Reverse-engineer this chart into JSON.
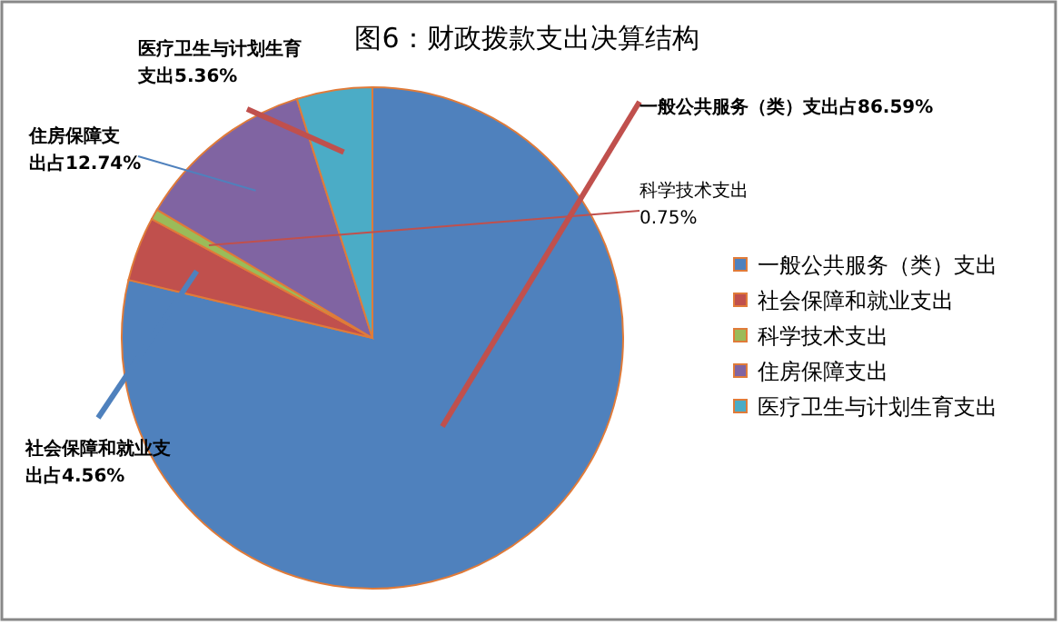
{
  "chart_data": {
    "type": "pie",
    "title": "图6：财政拨款支出决算结构",
    "categories": [
      "一般公共服务（类）支出",
      "社会保障和就业支出",
      "科学技术支出",
      "住房保障支出",
      "医疗卫生与计划生育支出"
    ],
    "values": [
      86.59,
      4.56,
      0.75,
      12.74,
      5.36
    ],
    "colors": [
      "#4f81bd",
      "#c0504d",
      "#9bbb59",
      "#8064a2",
      "#4bacc6"
    ],
    "value_labels": [
      "一般公共服务（类）支出占86.59%",
      "社会保障和就业支出占4.56%",
      "科学技术支出0.75%",
      "住房保障支出占12.74%",
      "医疗卫生与计划生育支出5.36%"
    ],
    "legend": "right"
  }
}
